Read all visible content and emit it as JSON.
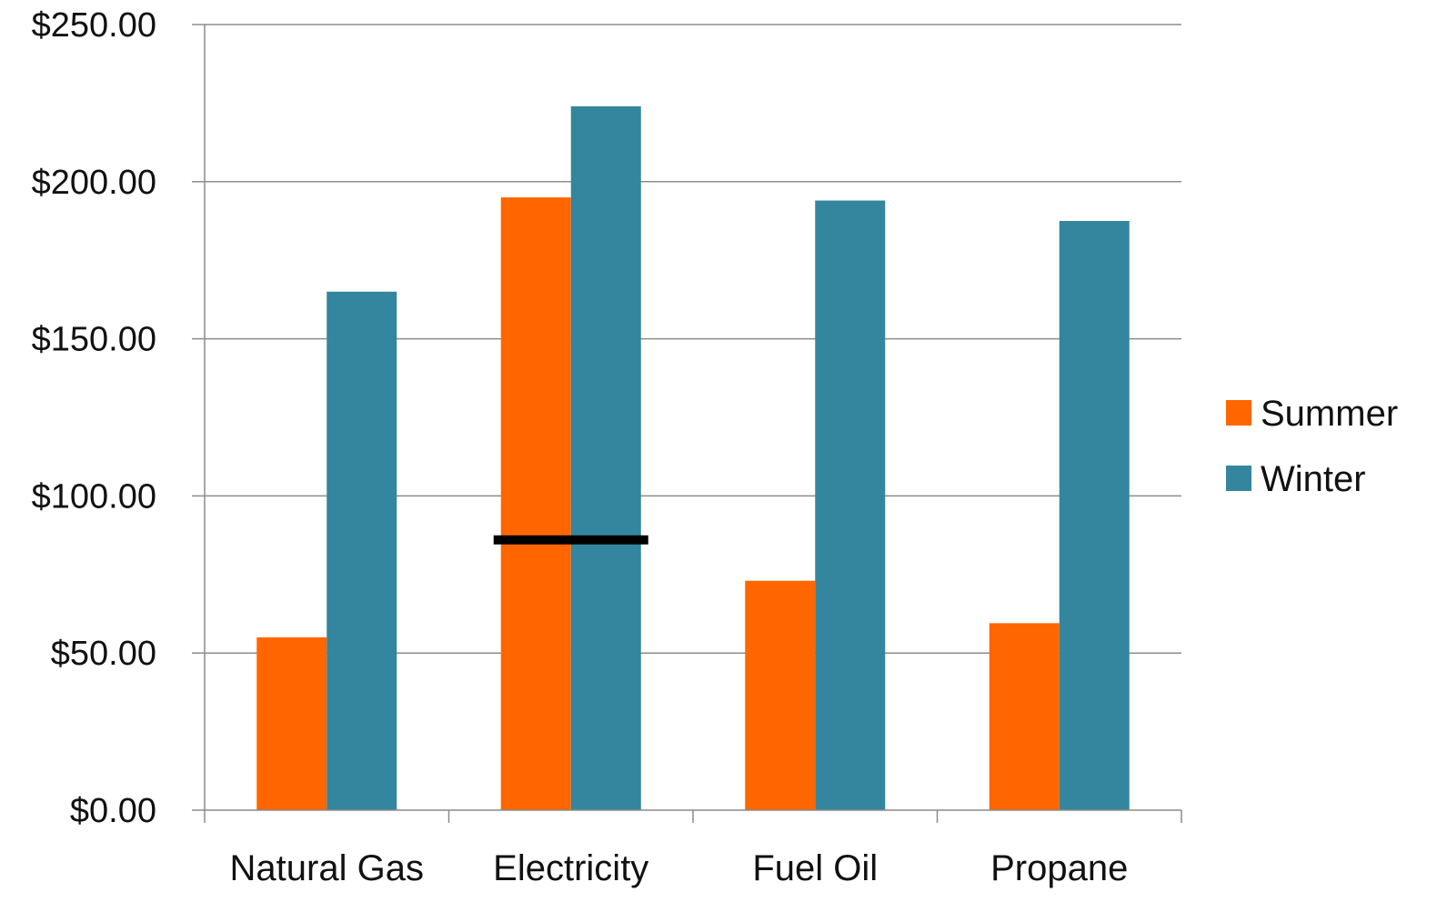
{
  "chart_data": {
    "type": "bar",
    "categories": [
      "Natural Gas",
      "Electricity",
      "Fuel Oil",
      "Propane"
    ],
    "series": [
      {
        "name": "Summer",
        "color": "#ff6600",
        "values": [
          55,
          195,
          73,
          59.5
        ]
      },
      {
        "name": "Winter",
        "color": "#33869e",
        "values": [
          165,
          224,
          194,
          187.5
        ]
      }
    ],
    "ylim": [
      0,
      250
    ],
    "yticks": [
      0,
      50,
      100,
      150,
      200,
      250
    ],
    "ytick_labels": [
      "$0.00",
      "$50.00",
      "$100.00",
      "$150.00",
      "$200.00",
      "$250.00"
    ],
    "reference_line": {
      "category": "Electricity",
      "value": 86,
      "color": "#000000"
    },
    "grid": true,
    "legend_position": "right"
  }
}
